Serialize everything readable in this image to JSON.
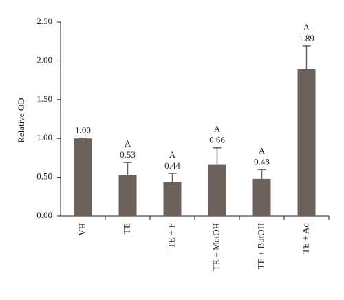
{
  "chart_data": {
    "type": "bar",
    "y_label": "Relative OD",
    "categories": [
      "VH",
      "TE",
      "TE + F",
      "TE + MetOH",
      "TE + ButOH",
      "TE + Aq"
    ],
    "values": [
      1.0,
      0.53,
      0.44,
      0.66,
      0.48,
      1.89
    ],
    "value_labels": [
      "1.00",
      "0.53",
      "0.44",
      "0.66",
      "0.48",
      "1.89"
    ],
    "errors": [
      0.005,
      0.16,
      0.11,
      0.22,
      0.12,
      0.3
    ],
    "annotations": [
      null,
      "A",
      "A",
      "A",
      "A",
      "A"
    ],
    "color": "#6b605a",
    "ylim": [
      0,
      2.5
    ],
    "yticks": [
      {
        "value": 0,
        "label": "0.00"
      },
      {
        "value": 0.5,
        "label": "0.50"
      },
      {
        "value": 1,
        "label": "1.00"
      },
      {
        "value": 1.5,
        "label": "1.50"
      },
      {
        "value": 2,
        "label": "2.00"
      },
      {
        "value": 2.5,
        "label": "2.50"
      }
    ]
  }
}
